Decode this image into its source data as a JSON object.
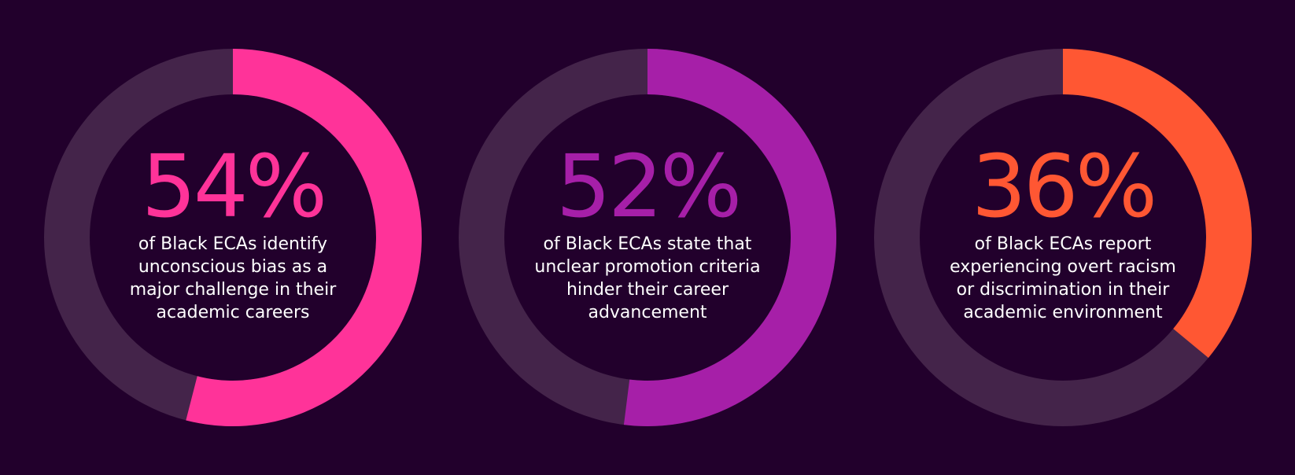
{
  "background_color": "#22002c",
  "track_color": "#44244a",
  "chart_data": [
    {
      "type": "pie",
      "value": 54,
      "label": "54%",
      "caption": "of Black ECAs identify unconscious bias as a major challenge in their academic careers",
      "color": "#ff3399"
    },
    {
      "type": "pie",
      "value": 52,
      "label": "52%",
      "caption": "of Black ECAs state that unclear promotion criteria hinder their career advancement",
      "color": "#a61fa8"
    },
    {
      "type": "pie",
      "value": 36,
      "label": "36%",
      "caption": "of Black ECAs report experiencing overt racism or discrimination in their academic environment",
      "color": "#ff5733"
    }
  ]
}
